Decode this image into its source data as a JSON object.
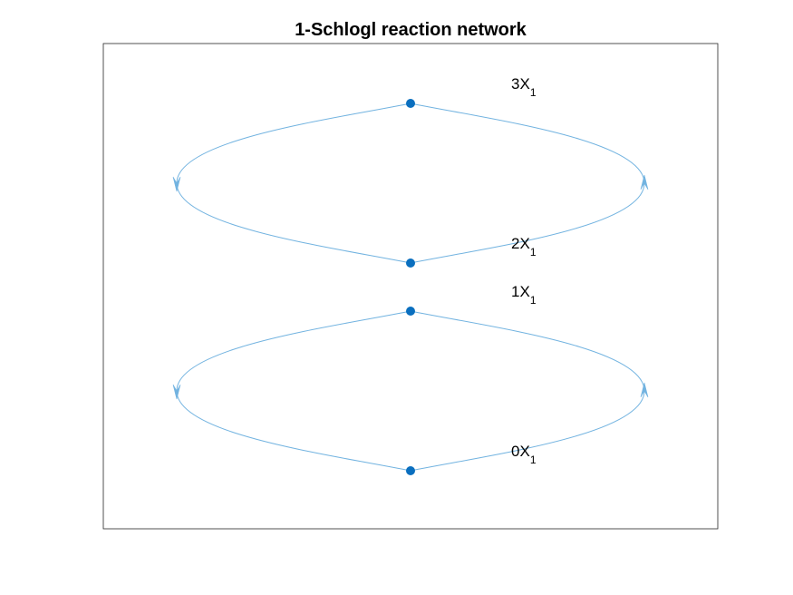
{
  "title": "1-Schlogl reaction network",
  "colors": {
    "edge": "#72b3e0",
    "node": "#0a6fbf",
    "axes": "#262626",
    "background": "#ffffff"
  },
  "nodes": [
    {
      "id": "3X1",
      "coef": "3",
      "species": "X",
      "subscript": "1"
    },
    {
      "id": "2X1",
      "coef": "2",
      "species": "X",
      "subscript": "1"
    },
    {
      "id": "1X1",
      "coef": "1",
      "species": "X",
      "subscript": "1"
    },
    {
      "id": "0X1",
      "coef": "0",
      "species": "X",
      "subscript": "1"
    }
  ],
  "reactions": [
    {
      "from": "3X1",
      "to": "2X1"
    },
    {
      "from": "2X1",
      "to": "3X1"
    },
    {
      "from": "1X1",
      "to": "0X1"
    },
    {
      "from": "0X1",
      "to": "1X1"
    }
  ]
}
